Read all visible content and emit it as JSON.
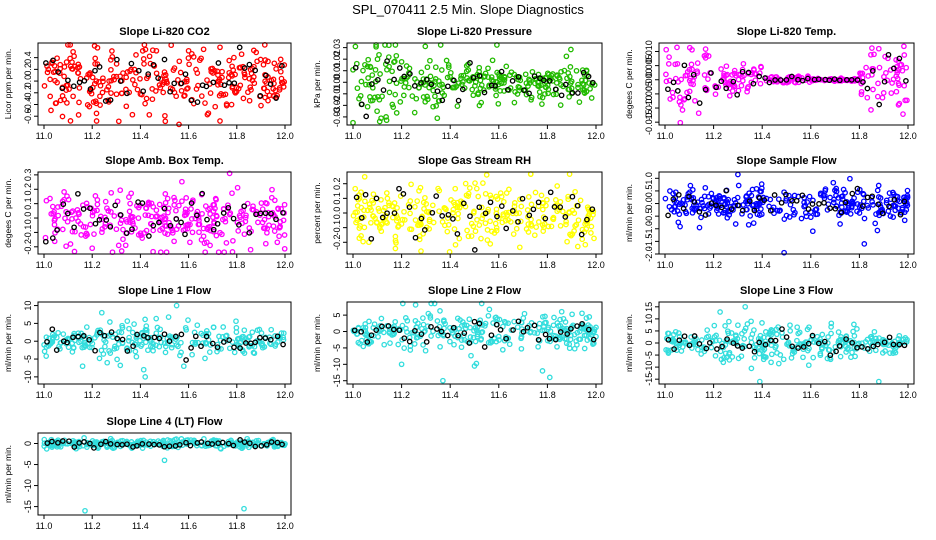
{
  "figure_title": "SPL_070411  2.5 Min. Slope Diagnostics",
  "chart_data": [
    {
      "type": "scatter",
      "title": "Slope Li-820 CO2",
      "ylabel": "Licor ppm per min.",
      "color": "#ff0000",
      "xlim": [
        11.0,
        12.0
      ],
      "ylim": [
        -0.75,
        0.65
      ],
      "xticks": [
        "11.0",
        "11.2",
        "11.4",
        "11.6",
        "11.8",
        "12.0"
      ],
      "yticks": [
        -0.6,
        -0.4,
        -0.2,
        0.0,
        0.2,
        0.4
      ],
      "ytick_labels": [
        "-0.6",
        "-0.4",
        "-0.2",
        "0.0",
        "0.2",
        "0.4"
      ],
      "spread": [
        0.28,
        0.28,
        0.28,
        0.28,
        0.28
      ],
      "outliers": [
        [
          11.11,
          -0.68
        ],
        [
          11.56,
          -0.74
        ],
        [
          11.21,
          0.6
        ]
      ],
      "n": 300
    },
    {
      "type": "scatter",
      "title": "Slope Li-820 Pressure",
      "ylabel": "kPa per min.",
      "color": "#22bb00",
      "xlim": [
        11.0,
        12.0
      ],
      "ylim": [
        -0.037,
        0.034
      ],
      "xticks": [
        "11.0",
        "11.2",
        "11.4",
        "11.6",
        "11.8",
        "12.0"
      ],
      "yticks": [
        -0.03,
        -0.02,
        -0.01,
        0.0,
        0.01,
        0.02,
        0.03
      ],
      "ytick_labels": [
        "-0.03",
        "-0.02",
        "-0.01",
        "0.00",
        "0.01",
        "0.02",
        "0.03"
      ],
      "spread": [
        0.016,
        0.013,
        0.01,
        0.009,
        0.009
      ],
      "outliers": [
        [
          11.0,
          -0.035
        ],
        [
          11.11,
          -0.034
        ],
        [
          11.01,
          0.031
        ]
      ],
      "n": 300
    },
    {
      "type": "scatter",
      "title": "Slope Li-820 Temp.",
      "ylabel": "degees C per min.",
      "color": "#ff00ff",
      "xlim": [
        11.0,
        12.0
      ],
      "ylim": [
        -0.016,
        0.013
      ],
      "xticks": [
        "11.0",
        "11.2",
        "11.4",
        "11.6",
        "11.8",
        "12.0"
      ],
      "yticks": [
        -0.015,
        -0.01,
        -0.005,
        0.0,
        0.005,
        0.01
      ],
      "ytick_labels": [
        "-0.015",
        "-0.010",
        "-0.005",
        "0.000",
        "0.005",
        "0.010"
      ],
      "spread": [
        0.006,
        0.0025,
        0.0008,
        0.0002,
        0.006
      ],
      "outliers": [
        [
          11.88,
          0.011
        ],
        [
          11.86,
          0.009
        ]
      ],
      "n": 280
    },
    {
      "type": "scatter",
      "title": "Slope Amb. Box Temp.",
      "ylabel": "degees C per min.",
      "color": "#ff00ff",
      "xlim": [
        11.0,
        12.0
      ],
      "ylim": [
        -0.25,
        0.32
      ],
      "xticks": [
        "11.0",
        "11.2",
        "11.4",
        "11.6",
        "11.8",
        "12.0"
      ],
      "yticks": [
        -0.2,
        -0.1,
        0.0,
        0.1,
        0.2,
        0.3
      ],
      "ytick_labels": [
        "-0.2",
        "-0.1",
        "0.0",
        "0.1",
        "0.2",
        "0.3"
      ],
      "spread": [
        0.1,
        0.1,
        0.1,
        0.1,
        0.1
      ],
      "outliers": [
        [
          11.77,
          0.31
        ],
        [
          11.2,
          -0.21
        ]
      ],
      "n": 300
    },
    {
      "type": "scatter",
      "title": "Slope Gas Stream RH",
      "ylabel": "percent per min.",
      "color": "#ffff00",
      "xlim": [
        11.0,
        12.0
      ],
      "ylim": [
        -0.28,
        0.28
      ],
      "xticks": [
        "11.0",
        "11.2",
        "11.4",
        "11.6",
        "11.8",
        "12.0"
      ],
      "yticks": [
        -0.2,
        -0.1,
        0.0,
        0.1,
        0.2
      ],
      "ytick_labels": [
        "-0.2",
        "-0.1",
        "0.0",
        "0.1",
        "0.2"
      ],
      "spread": [
        0.1,
        0.1,
        0.1,
        0.1,
        0.1
      ],
      "outliers": [
        [
          11.28,
          -0.26
        ],
        [
          11.55,
          0.26
        ]
      ],
      "n": 300
    },
    {
      "type": "scatter",
      "title": "Slope Sample Flow",
      "ylabel": "ml/min per min.",
      "color": "#0000ff",
      "xlim": [
        11.0,
        12.0
      ],
      "ylim": [
        -2.0,
        1.25
      ],
      "xticks": [
        "11.0",
        "11.2",
        "11.4",
        "11.6",
        "11.8",
        "12.0"
      ],
      "yticks": [
        -2.0,
        -1.5,
        -1.0,
        -0.5,
        0.0,
        0.5,
        1.0
      ],
      "ytick_labels": [
        "-2.0",
        "-1.5",
        "-1.0",
        "-0.5",
        "0.0",
        "0.5",
        "1.0"
      ],
      "spread": [
        0.35,
        0.35,
        0.35,
        0.35,
        0.35
      ],
      "outliers": [
        [
          11.49,
          -1.95
        ],
        [
          11.3,
          1.15
        ],
        [
          11.82,
          -1.6
        ]
      ],
      "n": 300
    },
    {
      "type": "scatter",
      "title": "Slope Line 1 Flow",
      "ylabel": "ml/min per min.",
      "color": "#33dddd",
      "xlim": [
        11.0,
        12.0
      ],
      "ylim": [
        -12.0,
        11.0
      ],
      "xticks": [
        "11.0",
        "11.2",
        "11.4",
        "11.6",
        "11.8",
        "12.0"
      ],
      "yticks": [
        -10,
        -5,
        0,
        5,
        10
      ],
      "ytick_labels": [
        "-10",
        "-5",
        "0",
        "5",
        "10"
      ],
      "spread": [
        1.6,
        2.5,
        3.0,
        2.5,
        1.6
      ],
      "outliers": [
        [
          11.24,
          8
        ],
        [
          11.55,
          10
        ],
        [
          11.16,
          -7
        ],
        [
          11.42,
          -10
        ],
        [
          11.58,
          -7
        ]
      ],
      "n": 260
    },
    {
      "type": "scatter",
      "title": "Slope Line 2 Flow",
      "ylabel": "ml/min per min.",
      "color": "#33dddd",
      "xlim": [
        11.0,
        12.0
      ],
      "ylim": [
        -16.0,
        9.0
      ],
      "xticks": [
        "11.0",
        "11.2",
        "11.4",
        "11.6",
        "11.8",
        "12.0"
      ],
      "yticks": [
        -15,
        -10,
        -5,
        0,
        5
      ],
      "ytick_labels": [
        "-15",
        "-10",
        "-5",
        "0",
        "5"
      ],
      "spread": [
        2.0,
        3.5,
        3.5,
        3.0,
        2.5
      ],
      "outliers": [
        [
          11.37,
          -15
        ],
        [
          11.78,
          -12
        ],
        [
          11.81,
          -14
        ],
        [
          11.2,
          -10
        ],
        [
          11.5,
          -10.5
        ]
      ],
      "n": 300
    },
    {
      "type": "scatter",
      "title": "Slope Line 3 Flow",
      "ylabel": "ml/min per min.",
      "color": "#33dddd",
      "xlim": [
        11.0,
        12.0
      ],
      "ylim": [
        -17.0,
        17.0
      ],
      "xticks": [
        "11.0",
        "11.2",
        "11.4",
        "11.6",
        "11.8",
        "12.0"
      ],
      "yticks": [
        -15,
        -10,
        -5,
        0,
        5,
        10,
        15
      ],
      "ytick_labels": [
        "-15",
        "-10",
        "-5",
        "0",
        "5",
        "10",
        "15"
      ],
      "spread": [
        2.0,
        4.0,
        4.0,
        3.0,
        2.0
      ],
      "outliers": [
        [
          11.33,
          15
        ],
        [
          11.39,
          -16
        ],
        [
          11.88,
          -16
        ],
        [
          11.24,
          -8
        ]
      ],
      "n": 300
    },
    {
      "type": "scatter",
      "title": "Slope Line 4 (LT) Flow",
      "ylabel": "ml/min per min.",
      "color": "#33dddd",
      "xlim": [
        11.0,
        12.0
      ],
      "ylim": [
        -17.0,
        2.5
      ],
      "xticks": [
        "11.0",
        "11.2",
        "11.4",
        "11.6",
        "11.8",
        "12.0"
      ],
      "yticks": [
        -15,
        -10,
        -5,
        0
      ],
      "ytick_labels": [
        "-15",
        "-10",
        "-5",
        "0"
      ],
      "spread": [
        0.5,
        0.5,
        0.5,
        0.5,
        0.5
      ],
      "outliers": [
        [
          11.17,
          -16
        ],
        [
          11.83,
          -15.5
        ],
        [
          11.5,
          -4
        ]
      ],
      "n": 300
    }
  ]
}
